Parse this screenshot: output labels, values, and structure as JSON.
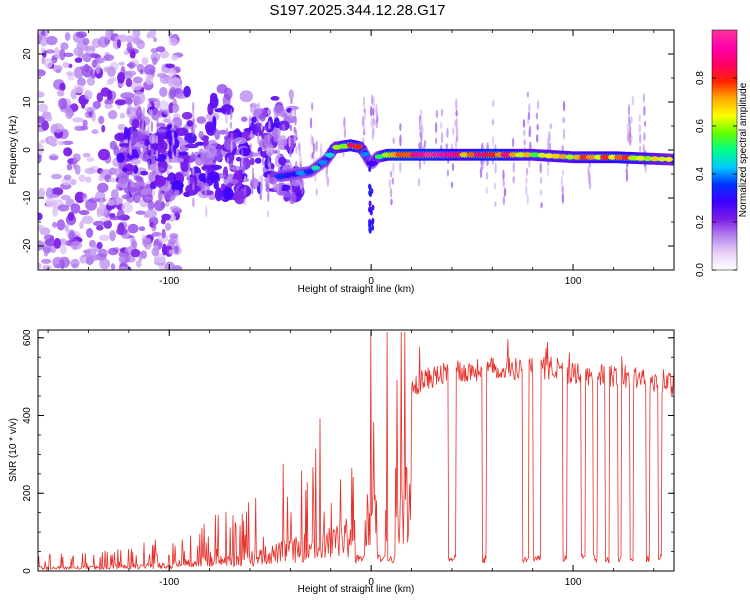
{
  "title": "S197.2025.344.12.28.G17",
  "colorbar": {
    "label": "Normalized spectral amplitude",
    "ticks": [
      "0.0",
      "0.2",
      "0.4",
      "0.6",
      "0.8"
    ],
    "tick_values": [
      0.0,
      0.2,
      0.4,
      0.6,
      0.8
    ],
    "range": [
      0,
      1
    ],
    "colors": [
      "#ffffff",
      "#e8d2f8",
      "#b482ee",
      "#7a1be8",
      "#3a00ff",
      "#0033ff",
      "#00ccff",
      "#00ff88",
      "#66ff00",
      "#ffff00",
      "#ffaa00",
      "#ff2200",
      "#ff0066",
      "#ff00aa",
      "#ff3399"
    ]
  },
  "chart_data": [
    {
      "type": "heatmap",
      "name": "spectrogram",
      "xlabel": "Height of straight line (km)",
      "ylabel": "Frequency (Hz)",
      "xlim": [
        -165,
        150
      ],
      "ylim": [
        -25,
        25
      ],
      "xticks": [
        -100,
        0,
        100
      ],
      "xtick_labels": [
        "-100",
        "0",
        "100"
      ],
      "yticks": [
        -20,
        -10,
        0,
        10,
        20
      ],
      "ytick_labels": [
        "-20",
        "-10",
        "0",
        "10",
        "20"
      ],
      "ridge": [
        [
          -45,
          -5.5
        ],
        [
          -30,
          -4.5
        ],
        [
          -22,
          -2
        ],
        [
          -18,
          0.5
        ],
        [
          -10,
          1
        ],
        [
          -5,
          0.5
        ],
        [
          0,
          -3
        ],
        [
          3,
          -1.5
        ],
        [
          8,
          -1
        ],
        [
          20,
          -1
        ],
        [
          40,
          -1
        ],
        [
          60,
          -1
        ],
        [
          80,
          -1
        ],
        [
          100,
          -1.5
        ],
        [
          120,
          -1.5
        ],
        [
          150,
          -2
        ]
      ],
      "ridge_amplitude": [
        [
          -45,
          0.35
        ],
        [
          -30,
          0.45
        ],
        [
          -18,
          0.6
        ],
        [
          -8,
          0.9
        ],
        [
          0,
          0.3
        ],
        [
          10,
          0.95
        ],
        [
          30,
          0.95
        ],
        [
          45,
          0.8
        ],
        [
          60,
          0.95
        ],
        [
          80,
          0.7
        ],
        [
          100,
          0.75
        ],
        [
          125,
          0.85
        ],
        [
          150,
          0.6
        ]
      ]
    },
    {
      "type": "line",
      "name": "snr",
      "xlabel": "Height of straight line (km)",
      "ylabel": "SNR (10 * v/v)",
      "xlim": [
        -165,
        150
      ],
      "ylim": [
        0,
        620
      ],
      "xticks": [
        -100,
        0,
        100
      ],
      "xtick_labels": [
        "-100",
        "0",
        "100"
      ],
      "yticks": [
        0,
        200,
        400,
        600
      ],
      "ytick_labels": [
        "0",
        "200",
        "400",
        "600"
      ],
      "color": "#e8302a",
      "envelope_x": [
        -165,
        -140,
        -120,
        -100,
        -80,
        -60,
        -40,
        -30,
        -20,
        -10,
        0,
        5,
        10,
        20,
        30,
        40,
        60,
        80,
        100,
        120,
        140,
        150
      ],
      "envelope_y": [
        20,
        20,
        25,
        40,
        60,
        80,
        130,
        160,
        180,
        220,
        330,
        380,
        430,
        470,
        500,
        510,
        520,
        520,
        510,
        500,
        490,
        480
      ],
      "dropouts": [
        [
          -8,
          -3
        ],
        [
          3,
          7
        ],
        [
          8,
          12
        ],
        [
          38,
          42
        ],
        [
          55,
          57
        ],
        [
          75,
          78
        ],
        [
          80,
          84
        ],
        [
          95,
          97
        ],
        [
          104,
          106
        ],
        [
          110,
          112
        ],
        [
          116,
          118
        ],
        [
          122,
          124
        ],
        [
          128,
          130
        ],
        [
          136,
          138
        ],
        [
          142,
          144
        ]
      ],
      "dropout_level": 35
    }
  ]
}
